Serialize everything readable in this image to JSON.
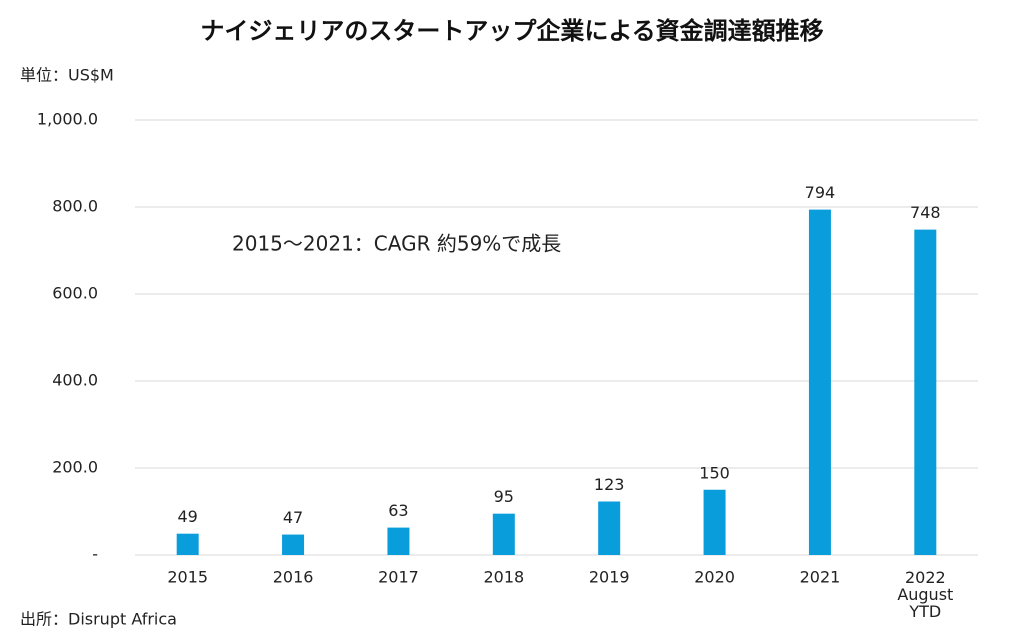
{
  "chart_data": {
    "type": "bar",
    "title": "ナイジェリアのスタートアップ企業による資金調達額推移",
    "unit_label": "単位：US$M",
    "annotation": "2015～2021：CAGR 約59%で成長",
    "source": "出所：Disrupt Africa",
    "categories": [
      "2015",
      "2016",
      "2017",
      "2018",
      "2019",
      "2020",
      "2021",
      "2022\nAugust\nYTD"
    ],
    "values": [
      49,
      47,
      63,
      95,
      123,
      150,
      794,
      748
    ],
    "color": "#0a9ddb",
    "ylim": [
      0,
      1000
    ],
    "yticks": [
      {
        "value": 0,
        "label": "-"
      },
      {
        "value": 200,
        "label": "200.0"
      },
      {
        "value": 400,
        "label": "400.0"
      },
      {
        "value": 600,
        "label": "600.0"
      },
      {
        "value": 800,
        "label": "800.0"
      },
      {
        "value": 1000,
        "label": "1,000.0"
      }
    ],
    "grid": true
  }
}
